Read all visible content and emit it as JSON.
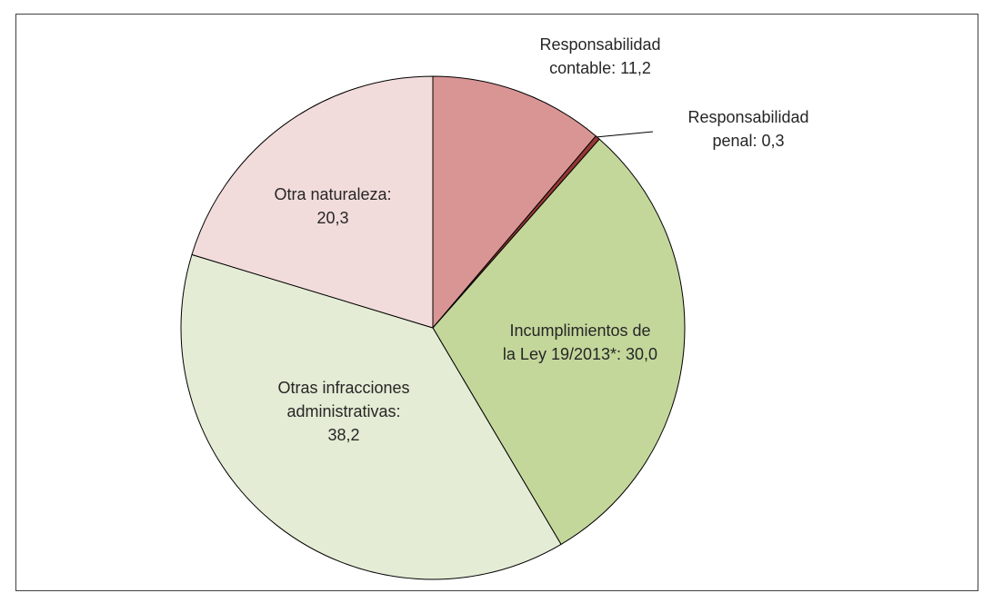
{
  "chart_data": {
    "type": "pie",
    "values": [
      11.2,
      0.3,
      30.0,
      38.2,
      20.3
    ],
    "value_labels": [
      [
        "Responsabilidad",
        "contable: 11,2"
      ],
      [
        "Responsabilidad",
        "penal: 0,3"
      ],
      [
        "Incumplimientos de",
        "la Ley 19/2013*: 30,0"
      ],
      [
        "Otras infracciones",
        "administrativas:",
        "38,2"
      ],
      [
        "Otra naturaleza:",
        "20,3"
      ]
    ],
    "colors": [
      "#d99594",
      "#953735",
      "#c4d79b",
      "#e4ecd5",
      "#f2dcdb"
    ]
  }
}
